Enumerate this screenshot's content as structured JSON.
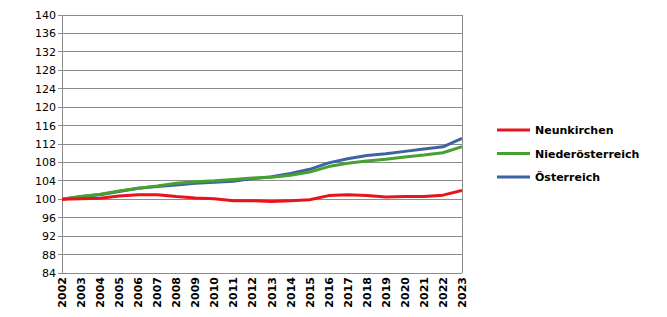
{
  "chart_data": {
    "type": "line",
    "categories": [
      "2002",
      "2003",
      "2004",
      "2005",
      "2006",
      "2007",
      "2008",
      "2009",
      "2010",
      "2011",
      "2012",
      "2013",
      "2014",
      "2015",
      "2016",
      "2017",
      "2018",
      "2019",
      "2020",
      "2021",
      "2022",
      "2023"
    ],
    "series": [
      {
        "name": "Neunkirchen",
        "color": "#e8141c",
        "values": [
          100,
          100.1,
          100.2,
          100.7,
          101.0,
          101.0,
          100.6,
          100.3,
          100.1,
          99.7,
          99.7,
          99.5,
          99.7,
          99.9,
          100.8,
          101.0,
          100.8,
          100.5,
          100.6,
          100.6,
          100.9,
          101.9
        ]
      },
      {
        "name": "Niederösterreich",
        "color": "#47a12e",
        "values": [
          100,
          100.6,
          101.1,
          101.8,
          102.4,
          102.9,
          103.5,
          103.8,
          104.0,
          104.3,
          104.6,
          104.8,
          105.2,
          105.9,
          107.1,
          107.8,
          108.3,
          108.7,
          109.2,
          109.6,
          110.1,
          111.4
        ]
      },
      {
        "name": "Österreich",
        "color": "#3e63a3",
        "values": [
          100,
          100.6,
          101.0,
          101.7,
          102.4,
          102.8,
          103.1,
          103.5,
          103.7,
          103.9,
          104.5,
          104.9,
          105.6,
          106.5,
          107.9,
          108.8,
          109.5,
          109.9,
          110.4,
          110.9,
          111.4,
          113.2
        ]
      }
    ],
    "ylim": [
      84,
      140
    ],
    "yticks": [
      84,
      88,
      92,
      96,
      100,
      104,
      108,
      112,
      116,
      120,
      124,
      128,
      132,
      136,
      140
    ],
    "grid": true,
    "legend": "right"
  }
}
